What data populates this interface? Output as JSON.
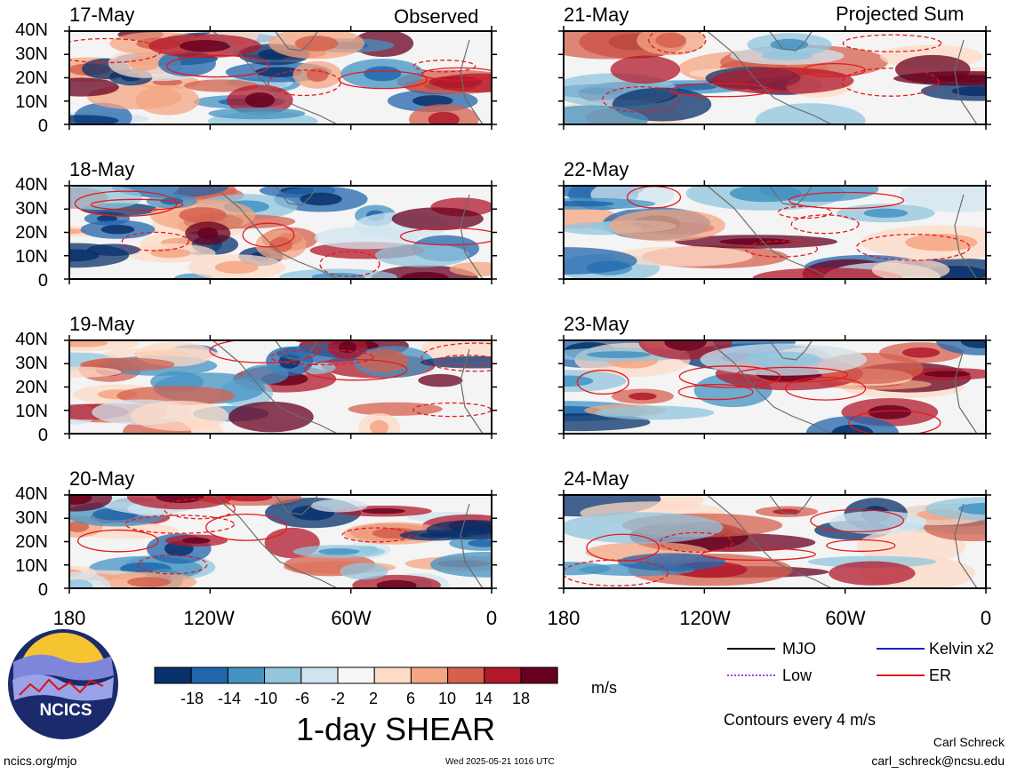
{
  "headers": {
    "observed": "Observed",
    "projected": "Projected Sum"
  },
  "panels": {
    "observed": [
      {
        "date": "17-May"
      },
      {
        "date": "18-May"
      },
      {
        "date": "19-May"
      },
      {
        "date": "20-May"
      }
    ],
    "projected": [
      {
        "date": "21-May"
      },
      {
        "date": "22-May"
      },
      {
        "date": "23-May"
      },
      {
        "date": "24-May"
      }
    ]
  },
  "lat_labels": [
    "40N",
    "30N",
    "20N",
    "10N",
    "0"
  ],
  "lon_labels": [
    "180",
    "120W",
    "60W",
    "0"
  ],
  "colorbar": {
    "ticks": [
      "-18",
      "-14",
      "-10",
      "-6",
      "-2",
      "2",
      "6",
      "10",
      "14",
      "18"
    ],
    "colors": [
      "#08306b",
      "#2166ac",
      "#4393c3",
      "#92c5de",
      "#d1e5f0",
      "#f7f7f7",
      "#fddbc7",
      "#f4a582",
      "#d6604d",
      "#b2182b",
      "#67001f"
    ],
    "units": "m/s",
    "title": "1-day SHEAR"
  },
  "legend": [
    {
      "label": "MJO",
      "color": "#000000",
      "style": "solid"
    },
    {
      "label": "Kelvin x2",
      "color": "#1f1fbf",
      "style": "solid"
    },
    {
      "label": "Low",
      "color": "#9a3cf0",
      "style": "dotted"
    },
    {
      "label": "ER",
      "color": "#e31a1c",
      "style": "solid"
    }
  ],
  "contour_note": "Contours every 4 m/s",
  "footer": {
    "left": "ncics.org/mjo",
    "timestamp": "Wed 2025-05-21 1016 UTC",
    "author": "Carl Schreck",
    "email": "carl_schreck@ncsu.edu"
  },
  "logo": {
    "text": "NCICS"
  }
}
